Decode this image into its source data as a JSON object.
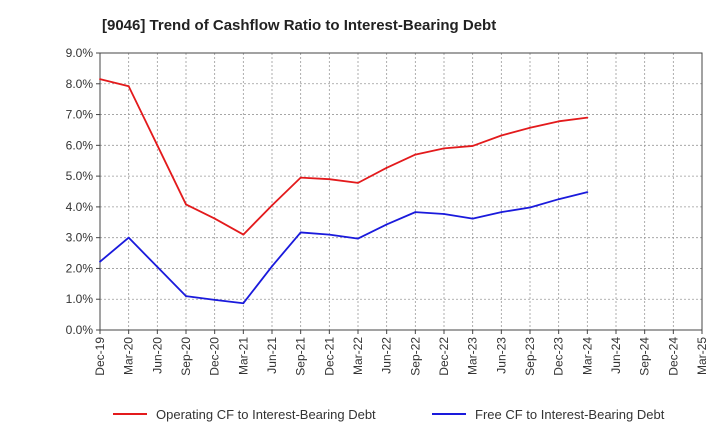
{
  "chart_data": {
    "type": "line",
    "title": "[9046]  Trend of Cashflow Ratio to Interest-Bearing Debt",
    "xlabel": "",
    "ylabel": "",
    "categories": [
      "Dec-19",
      "Mar-20",
      "Jun-20",
      "Sep-20",
      "Dec-20",
      "Mar-21",
      "Jun-21",
      "Sep-21",
      "Dec-21",
      "Mar-22",
      "Jun-22",
      "Sep-22",
      "Dec-22",
      "Mar-23",
      "Jun-23",
      "Sep-23",
      "Dec-23",
      "Mar-24",
      "Jun-24",
      "Sep-24",
      "Dec-24",
      "Mar-25"
    ],
    "ylim": [
      0,
      9
    ],
    "yticks": [
      0,
      1,
      2,
      3,
      4,
      5,
      6,
      7,
      8,
      9
    ],
    "ytick_labels": [
      "0.0%",
      "1.0%",
      "2.0%",
      "3.0%",
      "4.0%",
      "5.0%",
      "6.0%",
      "7.0%",
      "8.0%",
      "9.0%"
    ],
    "grid": true,
    "legend_position": "bottom",
    "series": [
      {
        "name": "Operating CF to Interest-Bearing Debt",
        "color": "#e31a1c",
        "values": [
          8.15,
          7.92,
          6.0,
          4.08,
          3.62,
          3.1,
          4.05,
          4.95,
          4.9,
          4.78,
          5.27,
          5.7,
          5.9,
          5.98,
          6.32,
          6.57,
          6.78,
          6.9,
          null,
          null,
          null,
          null
        ]
      },
      {
        "name": "Free CF to Interest-Bearing Debt",
        "color": "#1a1adc",
        "values": [
          2.22,
          3.0,
          2.05,
          1.1,
          0.98,
          0.87,
          2.07,
          3.17,
          3.1,
          2.97,
          3.43,
          3.83,
          3.77,
          3.62,
          3.83,
          3.98,
          4.25,
          4.48,
          null,
          null,
          null,
          null
        ]
      }
    ]
  }
}
